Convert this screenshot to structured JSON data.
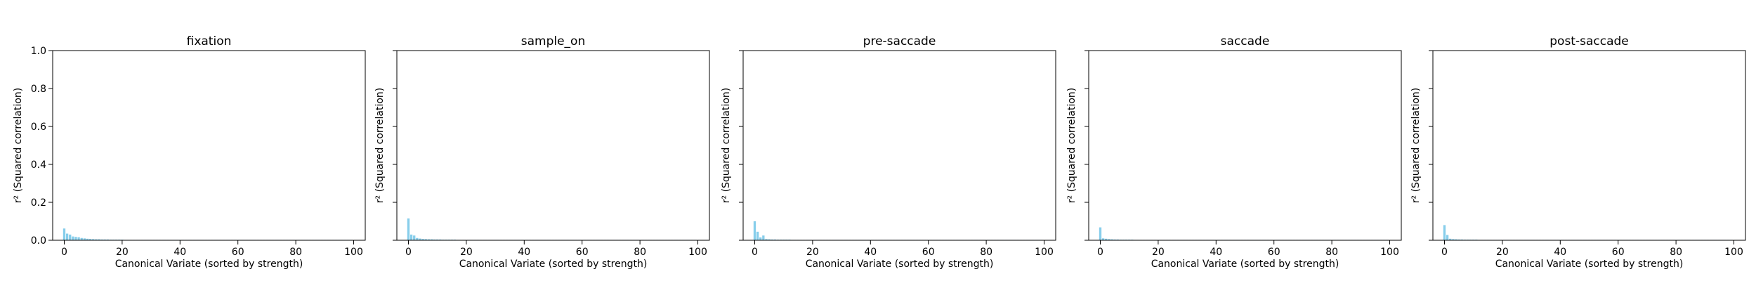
{
  "chart_data": [
    {
      "type": "bar",
      "title": "fixation",
      "xlabel": "Canonical Variate (sorted by strength)",
      "ylabel": "r² (Squared correlation)",
      "xlim": [
        -4,
        104
      ],
      "ylim": [
        0,
        1.0
      ],
      "xticks": [
        "0",
        "20",
        "40",
        "60",
        "80",
        "100"
      ],
      "yticks": [
        "0.0",
        "0.2",
        "0.4",
        "0.6",
        "0.8",
        "1.0"
      ],
      "bar_color": "#87ceeb",
      "x": [
        0,
        1,
        2,
        3,
        4,
        5,
        6,
        7,
        8,
        9,
        10,
        11,
        12,
        13,
        14,
        15,
        16,
        17,
        18,
        19,
        20,
        21,
        22,
        23,
        24,
        25,
        26,
        27,
        28,
        29,
        30,
        31,
        32,
        33,
        34,
        35,
        36,
        37,
        38,
        39,
        40,
        41,
        42,
        43,
        44,
        45,
        46,
        47,
        48,
        49,
        50,
        51,
        52,
        53,
        54,
        55,
        56,
        57,
        58,
        59,
        60,
        61,
        62,
        63,
        64,
        65,
        66,
        67,
        68,
        69,
        70,
        71,
        72,
        73,
        74,
        75,
        76,
        77,
        78,
        79,
        80,
        81,
        82,
        83,
        84,
        85,
        86,
        87,
        88,
        89,
        90,
        91,
        92,
        93,
        94,
        95,
        96,
        97,
        98,
        99
      ],
      "values": [
        0.062,
        0.035,
        0.03,
        0.02,
        0.018,
        0.016,
        0.012,
        0.01,
        0.008,
        0.007,
        0.006,
        0.005,
        0.005,
        0.004,
        0.004,
        0.004,
        0.003,
        0.003,
        0.003,
        0.003,
        0.003,
        0.002,
        0.002,
        0.002,
        0.002,
        0.002,
        0.002,
        0.002,
        0.002,
        0.002,
        0.002,
        0.002,
        0.002,
        0.002,
        0.002,
        0.002,
        0.002,
        0.002,
        0.002,
        0.002,
        0.002,
        0.002,
        0.002,
        0.002,
        0.002,
        0.002,
        0.002,
        0.002,
        0.002,
        0.002,
        0.002,
        0.002,
        0.002,
        0.002,
        0.002,
        0.002,
        0.002,
        0.002,
        0.002,
        0.002,
        0.002,
        0.002,
        0.002,
        0.002,
        0.002,
        0.002,
        0.002,
        0.002,
        0.002,
        0.002,
        0.002,
        0.002,
        0.002,
        0.002,
        0.002,
        0.002,
        0.002,
        0.002,
        0.002,
        0.002,
        0.002,
        0.002,
        0.002,
        0.002,
        0.002,
        0.002,
        0.002,
        0.002,
        0.002,
        0.002,
        0.002,
        0.002,
        0.002,
        0.002,
        0.002,
        0.002,
        0.002,
        0.002,
        0.002,
        0.002
      ]
    },
    {
      "type": "bar",
      "title": "sample_on",
      "xlabel": "Canonical Variate (sorted by strength)",
      "ylabel": "r² (Squared correlation)",
      "xlim": [
        -4,
        104
      ],
      "ylim": [
        0,
        1.0
      ],
      "xticks": [
        "0",
        "20",
        "40",
        "60",
        "80",
        "100"
      ],
      "yticks": [
        "0.0",
        "0.2",
        "0.4",
        "0.6",
        "0.8",
        "1.0"
      ],
      "bar_color": "#87ceeb",
      "x": [
        0,
        1,
        2,
        3,
        4,
        5,
        6,
        7,
        8,
        9,
        10,
        11,
        12,
        13,
        14,
        15,
        16,
        17,
        18,
        19,
        20,
        21,
        22,
        23,
        24,
        25,
        26,
        27,
        28,
        29,
        30,
        31,
        32,
        33,
        34,
        35,
        36,
        37,
        38,
        39,
        40,
        41,
        42,
        43,
        44,
        45,
        46,
        47,
        48,
        49,
        50,
        51,
        52,
        53,
        54,
        55,
        56,
        57,
        58,
        59,
        60,
        61,
        62,
        63,
        64,
        65,
        66,
        67,
        68,
        69,
        70,
        71,
        72,
        73,
        74,
        75,
        76,
        77,
        78,
        79,
        80,
        81,
        82,
        83,
        84,
        85,
        86,
        87,
        88,
        89,
        90,
        91,
        92,
        93,
        94,
        95,
        96,
        97,
        98,
        99
      ],
      "values": [
        0.115,
        0.03,
        0.025,
        0.012,
        0.009,
        0.007,
        0.006,
        0.005,
        0.005,
        0.004,
        0.004,
        0.004,
        0.003,
        0.003,
        0.003,
        0.003,
        0.003,
        0.002,
        0.002,
        0.002,
        0.002,
        0.002,
        0.002,
        0.002,
        0.002,
        0.002,
        0.002,
        0.002,
        0.002,
        0.002,
        0.002,
        0.002,
        0.002,
        0.002,
        0.002,
        0.002,
        0.002,
        0.002,
        0.002,
        0.002,
        0.002,
        0.002,
        0.002,
        0.002,
        0.002,
        0.002,
        0.002,
        0.002,
        0.002,
        0.002,
        0.002,
        0.002,
        0.002,
        0.002,
        0.002,
        0.002,
        0.002,
        0.002,
        0.002,
        0.002,
        0.002,
        0.002,
        0.002,
        0.002,
        0.002,
        0.002,
        0.002,
        0.002,
        0.002,
        0.002,
        0.002,
        0.002,
        0.002,
        0.002,
        0.002,
        0.002,
        0.002,
        0.002,
        0.002,
        0.002,
        0.002,
        0.002,
        0.002,
        0.002,
        0.002,
        0.002,
        0.002,
        0.002,
        0.002,
        0.002,
        0.002,
        0.002,
        0.002,
        0.002,
        0.002,
        0.002,
        0.002,
        0.002,
        0.002,
        0.002
      ]
    },
    {
      "type": "bar",
      "title": "pre-saccade",
      "xlabel": "Canonical Variate (sorted by strength)",
      "ylabel": "r² (Squared correlation)",
      "xlim": [
        -4,
        104
      ],
      "ylim": [
        0,
        1.0
      ],
      "xticks": [
        "0",
        "20",
        "40",
        "60",
        "80",
        "100"
      ],
      "yticks": [
        "0.0",
        "0.2",
        "0.4",
        "0.6",
        "0.8",
        "1.0"
      ],
      "bar_color": "#87ceeb",
      "x": [
        0,
        1,
        2,
        3,
        4,
        5,
        6,
        7,
        8,
        9,
        10,
        11,
        12,
        13,
        14,
        15,
        16,
        17,
        18,
        19,
        20,
        21,
        22,
        23,
        24,
        25,
        26,
        27,
        28,
        29,
        30,
        31,
        32,
        33,
        34,
        35,
        36,
        37,
        38,
        39,
        40,
        41,
        42,
        43,
        44,
        45,
        46,
        47,
        48,
        49,
        50,
        51,
        52,
        53,
        54,
        55,
        56,
        57,
        58,
        59,
        60,
        61,
        62,
        63,
        64,
        65,
        66,
        67,
        68,
        69,
        70,
        71,
        72,
        73,
        74,
        75,
        76,
        77,
        78,
        79,
        80,
        81,
        82,
        83,
        84,
        85,
        86,
        87,
        88,
        89,
        90,
        91,
        92,
        93,
        94,
        95,
        96,
        97,
        98,
        99
      ],
      "values": [
        0.1,
        0.045,
        0.015,
        0.025,
        0.006,
        0.005,
        0.004,
        0.004,
        0.003,
        0.003,
        0.003,
        0.003,
        0.003,
        0.002,
        0.002,
        0.002,
        0.002,
        0.002,
        0.002,
        0.002,
        0.002,
        0.002,
        0.002,
        0.002,
        0.002,
        0.002,
        0.002,
        0.002,
        0.002,
        0.002,
        0.002,
        0.002,
        0.002,
        0.002,
        0.002,
        0.002,
        0.002,
        0.002,
        0.002,
        0.002,
        0.002,
        0.002,
        0.002,
        0.002,
        0.002,
        0.002,
        0.002,
        0.002,
        0.002,
        0.002,
        0.002,
        0.002,
        0.002,
        0.002,
        0.002,
        0.002,
        0.002,
        0.002,
        0.002,
        0.002,
        0.002,
        0.002,
        0.002,
        0.002,
        0.002,
        0.002,
        0.002,
        0.002,
        0.002,
        0.002,
        0.002,
        0.002,
        0.002,
        0.002,
        0.002,
        0.002,
        0.002,
        0.002,
        0.002,
        0.002,
        0.002,
        0.002,
        0.002,
        0.002,
        0.002,
        0.002,
        0.002,
        0.002,
        0.002,
        0.002,
        0.002,
        0.002,
        0.002,
        0.002,
        0.002,
        0.002,
        0.002,
        0.002,
        0.002,
        0.002
      ]
    },
    {
      "type": "bar",
      "title": "saccade",
      "xlabel": "Canonical Variate (sorted by strength)",
      "ylabel": "r² (Squared correlation)",
      "xlim": [
        -4,
        104
      ],
      "ylim": [
        0,
        1.0
      ],
      "xticks": [
        "0",
        "20",
        "40",
        "60",
        "80",
        "100"
      ],
      "yticks": [
        "0.0",
        "0.2",
        "0.4",
        "0.6",
        "0.8",
        "1.0"
      ],
      "bar_color": "#87ceeb",
      "x": [
        0,
        1,
        2,
        3,
        4,
        5,
        6,
        7,
        8,
        9,
        10,
        11,
        12,
        13,
        14,
        15,
        16,
        17,
        18,
        19,
        20,
        21,
        22,
        23,
        24,
        25,
        26,
        27,
        28,
        29,
        30,
        31,
        32,
        33,
        34,
        35,
        36,
        37,
        38,
        39,
        40,
        41,
        42,
        43,
        44,
        45,
        46,
        47,
        48,
        49,
        50,
        51,
        52,
        53,
        54,
        55,
        56,
        57,
        58,
        59,
        60,
        61,
        62,
        63,
        64,
        65,
        66,
        67,
        68,
        69,
        70,
        71,
        72,
        73,
        74,
        75,
        76,
        77,
        78,
        79,
        80,
        81,
        82,
        83,
        84,
        85,
        86,
        87,
        88,
        89,
        90,
        91,
        92,
        93,
        94,
        95,
        96,
        97,
        98,
        99
      ],
      "values": [
        0.068,
        0.01,
        0.008,
        0.006,
        0.005,
        0.004,
        0.004,
        0.003,
        0.003,
        0.003,
        0.003,
        0.003,
        0.002,
        0.002,
        0.002,
        0.002,
        0.002,
        0.002,
        0.002,
        0.002,
        0.002,
        0.002,
        0.002,
        0.002,
        0.002,
        0.002,
        0.002,
        0.002,
        0.002,
        0.002,
        0.002,
        0.002,
        0.002,
        0.002,
        0.002,
        0.002,
        0.002,
        0.002,
        0.002,
        0.002,
        0.002,
        0.002,
        0.002,
        0.002,
        0.002,
        0.002,
        0.002,
        0.002,
        0.002,
        0.002,
        0.002,
        0.002,
        0.002,
        0.002,
        0.002,
        0.002,
        0.002,
        0.002,
        0.002,
        0.002,
        0.002,
        0.002,
        0.002,
        0.002,
        0.002,
        0.002,
        0.002,
        0.002,
        0.002,
        0.002,
        0.002,
        0.002,
        0.002,
        0.002,
        0.002,
        0.002,
        0.002,
        0.002,
        0.002,
        0.002,
        0.002,
        0.002,
        0.002,
        0.002,
        0.002,
        0.002,
        0.002,
        0.002,
        0.002,
        0.002,
        0.002,
        0.002,
        0.002,
        0.002,
        0.002,
        0.002,
        0.002,
        0.002,
        0.002,
        0.002
      ]
    },
    {
      "type": "bar",
      "title": "post-saccade",
      "xlabel": "Canonical Variate (sorted by strength)",
      "ylabel": "r² (Squared correlation)",
      "xlim": [
        -4,
        104
      ],
      "ylim": [
        0,
        1.0
      ],
      "xticks": [
        "0",
        "20",
        "40",
        "60",
        "80",
        "100"
      ],
      "yticks": [
        "0.0",
        "0.2",
        "0.4",
        "0.6",
        "0.8",
        "1.0"
      ],
      "bar_color": "#87ceeb",
      "x": [
        0,
        1,
        2,
        3,
        4,
        5,
        6,
        7,
        8,
        9,
        10,
        11,
        12,
        13,
        14,
        15,
        16,
        17,
        18,
        19,
        20,
        21,
        22,
        23,
        24,
        25,
        26,
        27,
        28,
        29,
        30,
        31,
        32,
        33,
        34,
        35,
        36,
        37,
        38,
        39,
        40,
        41,
        42,
        43,
        44,
        45,
        46,
        47,
        48,
        49,
        50,
        51,
        52,
        53,
        54,
        55,
        56,
        57,
        58,
        59,
        60,
        61,
        62,
        63,
        64,
        65,
        66,
        67,
        68,
        69,
        70,
        71,
        72,
        73,
        74,
        75,
        76,
        77,
        78,
        79,
        80,
        81,
        82,
        83,
        84,
        85,
        86,
        87,
        88,
        89,
        90,
        91,
        92,
        93,
        94,
        95,
        96,
        97,
        98,
        99
      ],
      "values": [
        0.08,
        0.028,
        0.008,
        0.006,
        0.005,
        0.004,
        0.004,
        0.003,
        0.003,
        0.003,
        0.003,
        0.003,
        0.002,
        0.002,
        0.002,
        0.002,
        0.002,
        0.002,
        0.002,
        0.002,
        0.002,
        0.002,
        0.002,
        0.002,
        0.002,
        0.002,
        0.002,
        0.002,
        0.002,
        0.002,
        0.002,
        0.002,
        0.002,
        0.002,
        0.002,
        0.002,
        0.002,
        0.002,
        0.002,
        0.002,
        0.002,
        0.002,
        0.002,
        0.002,
        0.002,
        0.002,
        0.002,
        0.002,
        0.002,
        0.002,
        0.002,
        0.002,
        0.002,
        0.002,
        0.002,
        0.002,
        0.002,
        0.002,
        0.002,
        0.002,
        0.002,
        0.002,
        0.002,
        0.002,
        0.002,
        0.002,
        0.002,
        0.002,
        0.002,
        0.002,
        0.002,
        0.002,
        0.002,
        0.002,
        0.002,
        0.002,
        0.002,
        0.002,
        0.002,
        0.002,
        0.002,
        0.002,
        0.002,
        0.002,
        0.002,
        0.002,
        0.002,
        0.002,
        0.002,
        0.002,
        0.002,
        0.002,
        0.002,
        0.002,
        0.002,
        0.002,
        0.002,
        0.002,
        0.002,
        0.002
      ]
    }
  ]
}
